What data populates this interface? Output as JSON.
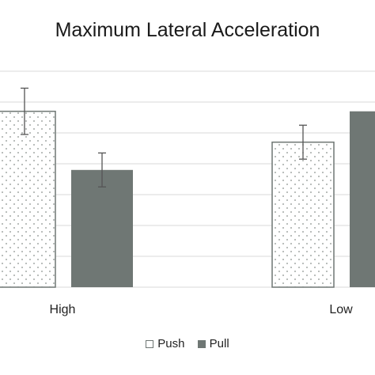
{
  "chart_data": {
    "type": "bar",
    "title": "Maximum Lateral Acceleration",
    "categories": [
      "High",
      "Low"
    ],
    "series": [
      {
        "name": "Push",
        "values": [
          5.7,
          4.7
        ],
        "errors": [
          0.75,
          0.55
        ],
        "style": "dotted-outline"
      },
      {
        "name": "Pull",
        "values": [
          3.8,
          5.7
        ],
        "errors": [
          0.55,
          null
        ],
        "style": "solid"
      }
    ],
    "ylim": [
      0,
      7
    ],
    "grid": true,
    "legend_position": "bottom",
    "colors": {
      "pull_fill": "#6f7774",
      "push_outline": "#6f7774",
      "gridline": "#d9d9d9",
      "error_bar": "#555555"
    }
  }
}
